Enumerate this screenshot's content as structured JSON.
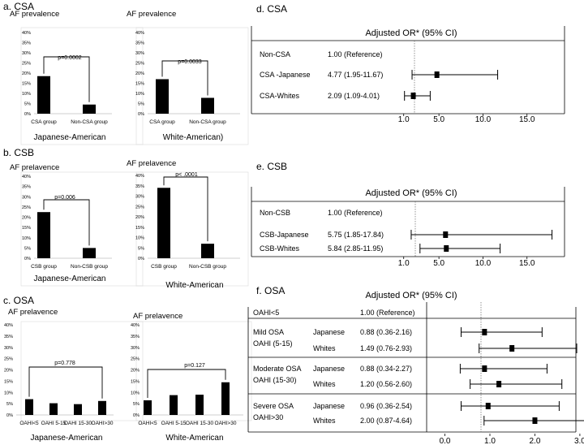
{
  "chart_data": [
    {
      "id": "a1",
      "type": "bar",
      "section": "a. CSA",
      "title": "AF prevalence",
      "xlabel": "Japanese-American",
      "categories": [
        "CSA group",
        "Non-CSA group"
      ],
      "values": [
        18.5,
        4.5
      ],
      "ylim": [
        0,
        40
      ],
      "yticks": [
        "0%",
        "5%",
        "10%",
        "15%",
        "20%",
        "25%",
        "30%",
        "35%",
        "40%"
      ],
      "annotation": "p=0.0002"
    },
    {
      "id": "a2",
      "type": "bar",
      "title": "AF prevalence",
      "xlabel": "White-American)",
      "categories": [
        "CSA group",
        "Non-CSA group"
      ],
      "values": [
        17,
        7.8
      ],
      "ylim": [
        0,
        40
      ],
      "yticks": [
        "0%",
        "5%",
        "10%",
        "15%",
        "20%",
        "25%",
        "30%",
        "35%",
        "40%"
      ],
      "annotation": "p=0.0033"
    },
    {
      "id": "b1",
      "type": "bar",
      "section": "b. CSB",
      "title": "AF prelavence",
      "xlabel": "Japanese-American",
      "categories": [
        "CSB group",
        "Non-CSB group"
      ],
      "values": [
        22.5,
        5
      ],
      "ylim": [
        0,
        40
      ],
      "yticks": [
        "0%",
        "5%",
        "10%",
        "15%",
        "20%",
        "25%",
        "30%",
        "35%",
        "40%"
      ],
      "annotation": "p=0.006"
    },
    {
      "id": "b2",
      "type": "bar",
      "title": "AF prelavence",
      "xlabel": "White-American",
      "categories": [
        "CSB group",
        "Non-CSB group"
      ],
      "values": [
        34,
        7
      ],
      "ylim": [
        0,
        40
      ],
      "yticks": [
        "0%",
        "5%",
        "10%",
        "15%",
        "20%",
        "25%",
        "30%",
        "35%",
        "40%"
      ],
      "annotation": "p< .0001"
    },
    {
      "id": "c1",
      "type": "bar",
      "section": "c. OSA",
      "title": "AF prelavence",
      "xlabel": "Japanese-American",
      "categories": [
        "OAHI<5",
        "OAHI 5-15",
        "OAHI 15-30",
        "OAHI>30"
      ],
      "values": [
        7,
        5.2,
        4.8,
        6.2
      ],
      "ylim": [
        0,
        40
      ],
      "yticks": [
        "0%",
        "5%",
        "10%",
        "15%",
        "20%",
        "25%",
        "30%",
        "35%",
        "40%"
      ],
      "annotation": "p=0.778"
    },
    {
      "id": "c2",
      "type": "bar",
      "title": "AF prelavence",
      "xlabel": "White-American",
      "categories": [
        "OAHI<5",
        "OAHI 5-15",
        "OAHI 15-30",
        "OAHI>30"
      ],
      "values": [
        6.5,
        8.8,
        9,
        14.5
      ],
      "ylim": [
        0,
        40
      ],
      "yticks": [
        "0%",
        "5%",
        "10%",
        "15%",
        "20%",
        "25%",
        "30%",
        "35%",
        "40%"
      ],
      "annotation": "p=0.127"
    },
    {
      "id": "d",
      "type": "forest",
      "section": "d. CSA",
      "header": "Adjusted OR* (95% CI)",
      "xlim": [
        -1,
        20
      ],
      "xticks": [
        "1.0",
        "5.0",
        "10.0",
        "15.0"
      ],
      "rows": [
        {
          "label": "Non-CSA",
          "text": "1.00 (Reference)",
          "or": null,
          "lo": null,
          "hi": null
        },
        {
          "label": "CSA -Japanese",
          "text": "4.77 (1.95-11.67)",
          "or": 4.77,
          "lo": 1.95,
          "hi": 11.67
        },
        {
          "label": "CSA-Whites",
          "text": "2.09 (1.09-4.01)",
          "or": 2.09,
          "lo": 1.09,
          "hi": 4.01
        }
      ]
    },
    {
      "id": "e",
      "type": "forest",
      "section": "e. CSB",
      "header": "Adjusted OR* (95% CI)",
      "xlim": [
        -1,
        20
      ],
      "xticks": [
        "1.0",
        "5.0",
        "10.0",
        "15.0"
      ],
      "rows": [
        {
          "label": "Non-CSB",
          "text": "1.00 (Reference)",
          "or": null,
          "lo": null,
          "hi": null
        },
        {
          "label": "CSB-Japanese",
          "text": "5.75 (1.85-17.84)",
          "or": 5.75,
          "lo": 1.85,
          "hi": 17.84
        },
        {
          "label": "CSB-Whites",
          "text": "5.84 (2.85-11.95)",
          "or": 5.84,
          "lo": 2.85,
          "hi": 11.95
        }
      ]
    },
    {
      "id": "f",
      "type": "forest",
      "section": "f. OSA",
      "header": "Adjusted OR* (95% CI)",
      "xlim": [
        -0.1,
        3.2
      ],
      "xticks": [
        "0.0",
        "1.0",
        "2.0",
        "3.0"
      ],
      "rows": [
        {
          "label": "OAHI<5",
          "group": "",
          "text": "1.00 (Reference)",
          "or": null,
          "lo": null,
          "hi": null
        },
        {
          "label": "Mild OSA",
          "label2": "OAHI  (5-15)",
          "group": "Japanese",
          "text": "0.88 (0.36-2.16)",
          "or": 0.88,
          "lo": 0.36,
          "hi": 2.16
        },
        {
          "label": "",
          "group": "Whites",
          "text": "1.49 (0.76-2.93)",
          "or": 1.49,
          "lo": 0.76,
          "hi": 2.93
        },
        {
          "label": "Moderate OSA",
          "label2": "OAHI (15-30)",
          "group": "Japanese",
          "text": "0.88 (0.34-2.27)",
          "or": 0.88,
          "lo": 0.34,
          "hi": 2.27
        },
        {
          "label": "",
          "group": "Whites",
          "text": "1.20 (0.56-2.60)",
          "or": 1.2,
          "lo": 0.56,
          "hi": 2.6
        },
        {
          "label": "Severe OSA",
          "label2": "OAHI>30",
          "group": "Japanese",
          "text": "0.96 (0.36-2.54)",
          "or": 0.96,
          "lo": 0.36,
          "hi": 2.54
        },
        {
          "label": "",
          "group": "Whites",
          "text": "2.00 (0.87-4.64)",
          "or": 2.0,
          "lo": 0.87,
          "hi": 4.64
        }
      ]
    }
  ]
}
